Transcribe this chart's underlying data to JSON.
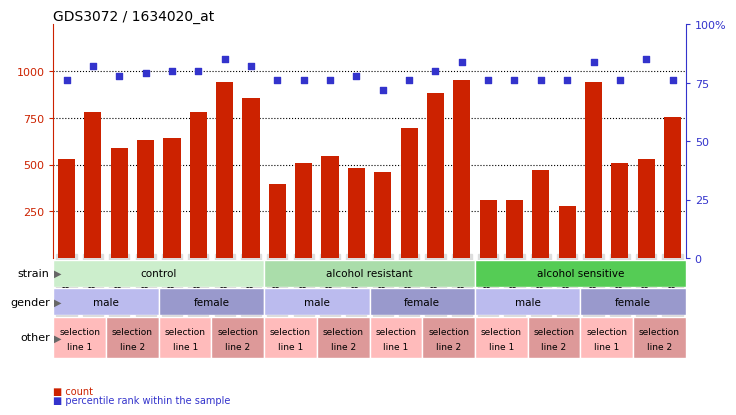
{
  "title": "GDS3072 / 1634020_at",
  "samples": [
    "GSM183815",
    "GSM183816",
    "GSM183990",
    "GSM183991",
    "GSM183817",
    "GSM183856",
    "GSM183992",
    "GSM183993",
    "GSM183887",
    "GSM183888",
    "GSM184121",
    "GSM184122",
    "GSM183936",
    "GSM183989",
    "GSM184123",
    "GSM184124",
    "GSM183857",
    "GSM183858",
    "GSM183994",
    "GSM184118",
    "GSM183875",
    "GSM183886",
    "GSM184119",
    "GSM184120"
  ],
  "counts": [
    530,
    780,
    590,
    630,
    640,
    780,
    940,
    855,
    395,
    510,
    545,
    480,
    460,
    695,
    880,
    950,
    310,
    310,
    470,
    280,
    940,
    510,
    530,
    755
  ],
  "percentiles": [
    76,
    82,
    78,
    79,
    80,
    80,
    85,
    82,
    76,
    76,
    76,
    78,
    72,
    76,
    80,
    84,
    76,
    76,
    76,
    76,
    84,
    76,
    85,
    76
  ],
  "ylim_left": [
    0,
    1250
  ],
  "ylim_right": [
    0,
    100
  ],
  "bar_color": "#cc2200",
  "dot_color": "#3333cc",
  "dotted_line_values": [
    250,
    500,
    750,
    1000
  ],
  "strain_groups": [
    {
      "label": "control",
      "start": 0,
      "end": 8,
      "color": "#cceecc"
    },
    {
      "label": "alcohol resistant",
      "start": 8,
      "end": 16,
      "color": "#aaddaa"
    },
    {
      "label": "alcohol sensitive",
      "start": 16,
      "end": 24,
      "color": "#55cc55"
    }
  ],
  "gender_groups": [
    {
      "label": "male",
      "start": 0,
      "end": 4,
      "color": "#bbbbee"
    },
    {
      "label": "female",
      "start": 4,
      "end": 8,
      "color": "#9999cc"
    },
    {
      "label": "male",
      "start": 8,
      "end": 12,
      "color": "#bbbbee"
    },
    {
      "label": "female",
      "start": 12,
      "end": 16,
      "color": "#9999cc"
    },
    {
      "label": "male",
      "start": 16,
      "end": 20,
      "color": "#bbbbee"
    },
    {
      "label": "female",
      "start": 20,
      "end": 24,
      "color": "#9999cc"
    }
  ],
  "other_groups": [
    {
      "label": "selection\nline 1",
      "start": 0,
      "end": 2,
      "color": "#ffbbbb"
    },
    {
      "label": "selection\nline 2",
      "start": 2,
      "end": 4,
      "color": "#dd9999"
    },
    {
      "label": "selection\nline 1",
      "start": 4,
      "end": 6,
      "color": "#ffbbbb"
    },
    {
      "label": "selection\nline 2",
      "start": 6,
      "end": 8,
      "color": "#dd9999"
    },
    {
      "label": "selection\nline 1",
      "start": 8,
      "end": 10,
      "color": "#ffbbbb"
    },
    {
      "label": "selection\nline 2",
      "start": 10,
      "end": 12,
      "color": "#dd9999"
    },
    {
      "label": "selection\nline 1",
      "start": 12,
      "end": 14,
      "color": "#ffbbbb"
    },
    {
      "label": "selection\nline 2",
      "start": 14,
      "end": 16,
      "color": "#dd9999"
    },
    {
      "label": "selection\nline 1",
      "start": 16,
      "end": 18,
      "color": "#ffbbbb"
    },
    {
      "label": "selection\nline 2",
      "start": 18,
      "end": 20,
      "color": "#dd9999"
    },
    {
      "label": "selection\nline 1",
      "start": 20,
      "end": 22,
      "color": "#ffbbbb"
    },
    {
      "label": "selection\nline 2",
      "start": 22,
      "end": 24,
      "color": "#dd9999"
    }
  ],
  "legend_items": [
    {
      "label": "count",
      "color": "#cc2200"
    },
    {
      "label": "percentile rank within the sample",
      "color": "#3333cc"
    }
  ],
  "tick_label_color_left": "#cc2200",
  "tick_label_color_right": "#3333cc",
  "bg_color": "#ffffff",
  "xticklabel_bg": "#dddddd"
}
